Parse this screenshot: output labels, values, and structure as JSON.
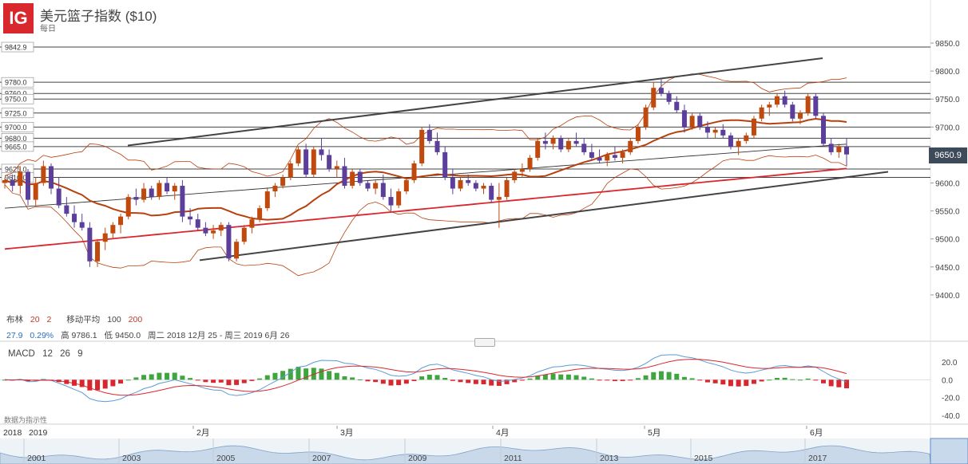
{
  "header": {
    "logo": "IG",
    "title": "美元篮子指数 ($10)",
    "period": "每日"
  },
  "colors": {
    "up": "#c0490e",
    "down": "#5b3f9a",
    "ma20": "#b7410e",
    "ma100": "#333333",
    "ma200": "#d9272e",
    "bollinger": "#b7410e",
    "macd_line": "#5a9bd5",
    "signal_line": "#d9272e",
    "hist_pos": "#3fa63f",
    "hist_neg": "#d9272e"
  },
  "current_price": "9650.9",
  "legend": {
    "bollinger_label": "布林",
    "bollinger_period": "20",
    "bollinger_dev": "2",
    "ma_label": "移动平均",
    "ma_period_1": "100",
    "ma_period_2": "200",
    "stat_1": "27.9",
    "stat_2": "0.29%",
    "high_label": "高 9786.1",
    "low_label": "低 9450.0",
    "range_label": "周二 2018 12月 25 - 周三 2019 6月 26",
    "macd_label": "MACD",
    "macd_fast": "12",
    "macd_slow": "26",
    "macd_signal": "9",
    "source_note": "数据为指示性"
  },
  "price_axis": {
    "min": 9350,
    "max": 9870,
    "ticks": [
      "9850.0",
      "9800.0",
      "9750.0",
      "9700.0",
      "9650.0",
      "9600.0",
      "9550.0",
      "9500.0",
      "9450.0",
      "9400.0"
    ],
    "tick_values": [
      9850,
      9800,
      9750,
      9700,
      9650,
      9600,
      9550,
      9500,
      9450,
      9400
    ]
  },
  "levels": [
    {
      "label": "9842.9",
      "value": 9842.9
    },
    {
      "label": "9780.0",
      "value": 9780
    },
    {
      "label": "9760.0",
      "value": 9760
    },
    {
      "label": "9750.0",
      "value": 9750
    },
    {
      "label": "9725.0",
      "value": 9725
    },
    {
      "label": "9700.0",
      "value": 9700
    },
    {
      "label": "9680.0",
      "value": 9680
    },
    {
      "label": "9665.0",
      "value": 9665
    },
    {
      "label": "9625.0",
      "value": 9625
    },
    {
      "label": "9610.0",
      "value": 9610
    }
  ],
  "macd_axis": {
    "min": -48,
    "max": 28,
    "ticks": [
      "20.0",
      "0.0",
      "-20.0",
      "-40.0"
    ],
    "tick_values": [
      20,
      0,
      -20,
      -40
    ]
  },
  "time_axis": {
    "labels": [
      "2018",
      "2019",
      "2月",
      "3月",
      "4月",
      "5月",
      "6月"
    ]
  },
  "navigator": {
    "labels": [
      "2001",
      "2003",
      "2005",
      "2007",
      "2009",
      "2011",
      "2013",
      "2015",
      "2017"
    ]
  },
  "chart_data": {
    "type": "candlestick",
    "title": "美元篮子指数 ($10)",
    "series": [
      {
        "name": "price",
        "candles": [
          [
            9600,
            9610,
            9590,
            9605
          ],
          [
            9605,
            9615,
            9585,
            9595
          ],
          [
            9595,
            9630,
            9580,
            9620
          ],
          [
            9620,
            9625,
            9560,
            9570
          ],
          [
            9570,
            9610,
            9560,
            9600
          ],
          [
            9600,
            9640,
            9595,
            9630
          ],
          [
            9630,
            9635,
            9580,
            9590
          ],
          [
            9590,
            9610,
            9555,
            9560
          ],
          [
            9560,
            9575,
            9540,
            9545
          ],
          [
            9545,
            9560,
            9520,
            9530
          ],
          [
            9530,
            9545,
            9515,
            9520
          ],
          [
            9520,
            9530,
            9450,
            9460
          ],
          [
            9460,
            9500,
            9450,
            9495
          ],
          [
            9495,
            9520,
            9480,
            9510
          ],
          [
            9510,
            9530,
            9500,
            9525
          ],
          [
            9525,
            9545,
            9510,
            9540
          ],
          [
            9540,
            9580,
            9535,
            9575
          ],
          [
            9575,
            9590,
            9560,
            9570
          ],
          [
            9570,
            9600,
            9565,
            9590
          ],
          [
            9590,
            9595,
            9570,
            9575
          ],
          [
            9575,
            9605,
            9570,
            9600
          ],
          [
            9600,
            9610,
            9580,
            9585
          ],
          [
            9585,
            9600,
            9570,
            9595
          ],
          [
            9595,
            9605,
            9530,
            9540
          ],
          [
            9540,
            9555,
            9525,
            9535
          ],
          [
            9535,
            9545,
            9515,
            9520
          ],
          [
            9520,
            9530,
            9505,
            9510
          ],
          [
            9510,
            9525,
            9500,
            9515
          ],
          [
            9515,
            9530,
            9505,
            9525
          ],
          [
            9525,
            9530,
            9460,
            9465
          ],
          [
            9465,
            9500,
            9460,
            9495
          ],
          [
            9495,
            9525,
            9490,
            9520
          ],
          [
            9520,
            9540,
            9510,
            9535
          ],
          [
            9535,
            9560,
            9530,
            9555
          ],
          [
            9555,
            9590,
            9550,
            9585
          ],
          [
            9585,
            9600,
            9575,
            9595
          ],
          [
            9595,
            9615,
            9590,
            9610
          ],
          [
            9610,
            9640,
            9605,
            9635
          ],
          [
            9635,
            9665,
            9630,
            9660
          ],
          [
            9660,
            9670,
            9610,
            9615
          ],
          [
            9615,
            9665,
            9610,
            9660
          ],
          [
            9660,
            9680,
            9640,
            9650
          ],
          [
            9650,
            9660,
            9620,
            9625
          ],
          [
            9625,
            9640,
            9610,
            9630
          ],
          [
            9630,
            9645,
            9590,
            9595
          ],
          [
            9595,
            9625,
            9590,
            9620
          ],
          [
            9620,
            9625,
            9595,
            9600
          ],
          [
            9600,
            9605,
            9585,
            9590
          ],
          [
            9590,
            9605,
            9580,
            9600
          ],
          [
            9600,
            9615,
            9570,
            9575
          ],
          [
            9575,
            9590,
            9550,
            9560
          ],
          [
            9560,
            9590,
            9555,
            9585
          ],
          [
            9585,
            9610,
            9580,
            9605
          ],
          [
            9605,
            9640,
            9600,
            9635
          ],
          [
            9635,
            9700,
            9630,
            9695
          ],
          [
            9695,
            9705,
            9670,
            9675
          ],
          [
            9675,
            9690,
            9650,
            9655
          ],
          [
            9655,
            9665,
            9605,
            9610
          ],
          [
            9610,
            9625,
            9580,
            9590
          ],
          [
            9590,
            9610,
            9585,
            9605
          ],
          [
            9605,
            9615,
            9595,
            9600
          ],
          [
            9600,
            9605,
            9585,
            9590
          ],
          [
            9590,
            9600,
            9580,
            9595
          ],
          [
            9595,
            9600,
            9565,
            9570
          ],
          [
            9570,
            9600,
            9520,
            9575
          ],
          [
            9575,
            9610,
            9570,
            9605
          ],
          [
            9605,
            9625,
            9600,
            9620
          ],
          [
            9620,
            9635,
            9610,
            9625
          ],
          [
            9625,
            9650,
            9620,
            9645
          ],
          [
            9645,
            9680,
            9640,
            9675
          ],
          [
            9675,
            9690,
            9660,
            9670
          ],
          [
            9670,
            9685,
            9660,
            9680
          ],
          [
            9680,
            9685,
            9655,
            9660
          ],
          [
            9660,
            9680,
            9655,
            9675
          ],
          [
            9675,
            9690,
            9665,
            9670
          ],
          [
            9670,
            9680,
            9650,
            9655
          ],
          [
            9655,
            9670,
            9640,
            9645
          ],
          [
            9645,
            9660,
            9635,
            9640
          ],
          [
            9640,
            9655,
            9630,
            9650
          ],
          [
            9650,
            9665,
            9640,
            9645
          ],
          [
            9645,
            9660,
            9635,
            9655
          ],
          [
            9655,
            9680,
            9650,
            9675
          ],
          [
            9675,
            9705,
            9670,
            9700
          ],
          [
            9700,
            9740,
            9695,
            9735
          ],
          [
            9735,
            9780,
            9730,
            9770
          ],
          [
            9770,
            9786,
            9755,
            9760
          ],
          [
            9760,
            9765,
            9740,
            9745
          ],
          [
            9745,
            9755,
            9725,
            9730
          ],
          [
            9730,
            9740,
            9690,
            9700
          ],
          [
            9700,
            9725,
            9695,
            9720
          ],
          [
            9720,
            9725,
            9695,
            9700
          ],
          [
            9700,
            9710,
            9680,
            9690
          ],
          [
            9690,
            9700,
            9680,
            9695
          ],
          [
            9695,
            9705,
            9680,
            9685
          ],
          [
            9685,
            9690,
            9660,
            9665
          ],
          [
            9665,
            9680,
            9650,
            9675
          ],
          [
            9675,
            9690,
            9670,
            9685
          ],
          [
            9685,
            9720,
            9680,
            9715
          ],
          [
            9715,
            9740,
            9710,
            9735
          ],
          [
            9735,
            9745,
            9720,
            9740
          ],
          [
            9740,
            9760,
            9735,
            9755
          ],
          [
            9755,
            9765,
            9735,
            9740
          ],
          [
            9740,
            9745,
            9710,
            9715
          ],
          [
            9715,
            9730,
            9705,
            9725
          ],
          [
            9725,
            9760,
            9720,
            9755
          ],
          [
            9755,
            9760,
            9715,
            9720
          ],
          [
            9720,
            9725,
            9665,
            9670
          ],
          [
            9670,
            9680,
            9650,
            9655
          ],
          [
            9655,
            9670,
            9645,
            9665
          ],
          [
            9665,
            9680,
            9630,
            9651
          ]
        ]
      },
      {
        "name": "移动平均 100",
        "values": []
      },
      {
        "name": "移动平均 200",
        "values": []
      }
    ],
    "ylim": [
      9350,
      9870
    ],
    "xlabel": "",
    "ylabel": ""
  }
}
